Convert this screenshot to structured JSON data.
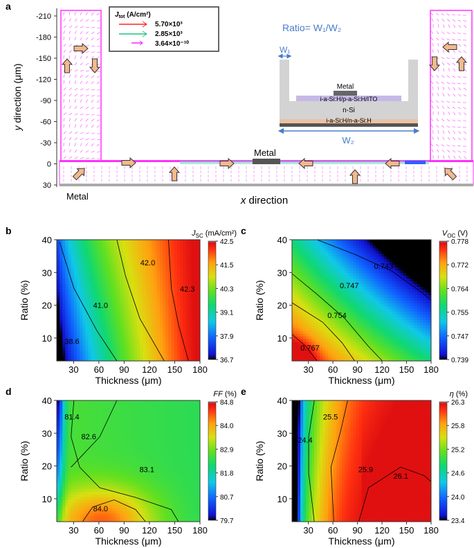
{
  "panel_a": {
    "letter": "a",
    "ylabel_italic": "y",
    "ylabel_rest": " direction (μm)",
    "xlabel_italic": "x",
    "xlabel_rest": " direction",
    "yticks": [
      "-210",
      "-180",
      "-150",
      "-120",
      "-90",
      "-60",
      "-30",
      "0",
      "30"
    ],
    "metal_left_label": "Metal",
    "metal_center_label": "Metal",
    "legend": {
      "title_main": "J",
      "title_sub": "tot",
      "title_unit": " (A/cm²)",
      "entries": [
        {
          "value": "5.70×10³",
          "color": "#ff2020"
        },
        {
          "value": "2.85×10³",
          "color": "#20c080"
        },
        {
          "value": "3.64×10⁻¹⁰",
          "color": "#ff20ff"
        }
      ]
    },
    "inset": {
      "ratio_label": "Ratio= W₁/W₂",
      "w1_label": "W₁",
      "w2_label": "W₂",
      "metal_label": "Metal",
      "layer_top": "i-a-Si:H/p-a-Si:H/ITO",
      "layer_mid": "n-Si",
      "layer_bottom": "i-a-Si:H/n-a-Si:H"
    }
  },
  "chart_data": [
    {
      "type": "heatmap",
      "panel": "b",
      "title": "J_SC (mA/cm²)",
      "colorbar_title_main": "J",
      "colorbar_title_sub": "SC",
      "colorbar_title_unit": " (mA/cm²)",
      "xlabel": "Thickness (μm)",
      "ylabel": "Ratio (%)",
      "xlim": [
        10,
        180
      ],
      "ylim": [
        3,
        40
      ],
      "xticks": [
        "30",
        "60",
        "90",
        "120",
        "150",
        "180"
      ],
      "yticks": [
        "10",
        "20",
        "30",
        "40"
      ],
      "colorbar_ticks": [
        "42.5",
        "41.5",
        "40.3",
        "39.1",
        "37.9",
        "36.7"
      ],
      "vmin": 36.7,
      "vmax": 42.5,
      "contour_labels": [
        {
          "text": "42.0",
          "x": 118,
          "y": 33
        },
        {
          "text": "42.3",
          "x": 165,
          "y": 25
        },
        {
          "text": "41.0",
          "x": 62,
          "y": 20
        },
        {
          "text": "38.6",
          "x": 28,
          "y": 9
        }
      ]
    },
    {
      "type": "heatmap",
      "panel": "c",
      "title": "V_OC (V)",
      "colorbar_title_main": "V",
      "colorbar_title_sub": "OC",
      "colorbar_title_unit": " (V)",
      "xlabel": "Thickness (μm)",
      "ylabel": "Ratio (%)",
      "xlim": [
        10,
        180
      ],
      "ylim": [
        3,
        40
      ],
      "xticks": [
        "30",
        "60",
        "90",
        "120",
        "150",
        "180"
      ],
      "yticks": [
        "10",
        "20",
        "30",
        "40"
      ],
      "colorbar_ticks": [
        "0.778",
        "0.772",
        "0.764",
        "0.755",
        "0.747",
        "0.739"
      ],
      "vmin": 0.739,
      "vmax": 0.778,
      "contour_labels": [
        {
          "text": "0.743",
          "x": 122,
          "y": 32
        },
        {
          "text": "0.747",
          "x": 80,
          "y": 26
        },
        {
          "text": "0.754",
          "x": 65,
          "y": 17
        },
        {
          "text": "0.767",
          "x": 32,
          "y": 7
        }
      ]
    },
    {
      "type": "heatmap",
      "panel": "d",
      "title": "FF (%)",
      "colorbar_title_main": "FF",
      "colorbar_title_sub": "",
      "colorbar_title_unit": " (%)",
      "xlabel": "Thickness (μm)",
      "ylabel": "Ratio (%)",
      "xlim": [
        10,
        180
      ],
      "ylim": [
        3,
        40
      ],
      "xticks": [
        "30",
        "60",
        "90",
        "120",
        "150",
        "180"
      ],
      "yticks": [
        "10",
        "20",
        "30",
        "40"
      ],
      "colorbar_ticks": [
        "84.8",
        "84.0",
        "82.9",
        "81.8",
        "80.7",
        "79.7"
      ],
      "vmin": 79.7,
      "vmax": 84.8,
      "contour_labels": [
        {
          "text": "81.4",
          "x": 28,
          "y": 35
        },
        {
          "text": "82.6",
          "x": 48,
          "y": 29
        },
        {
          "text": "83.1",
          "x": 117,
          "y": 19
        },
        {
          "text": "84.0",
          "x": 62,
          "y": 7
        }
      ]
    },
    {
      "type": "heatmap",
      "panel": "e",
      "title": "η (%)",
      "colorbar_title_main": "η",
      "colorbar_title_sub": "",
      "colorbar_title_unit": " (%)",
      "xlabel": "Thickness (μm)",
      "ylabel": "Ratio (%)",
      "xlim": [
        10,
        180
      ],
      "ylim": [
        3,
        40
      ],
      "xticks": [
        "30",
        "60",
        "90",
        "120",
        "150",
        "180"
      ],
      "yticks": [
        "10",
        "20",
        "30",
        "40"
      ],
      "colorbar_ticks": [
        "26.3",
        "25.8",
        "25.2",
        "24.6",
        "24.0",
        "23.4"
      ],
      "vmin": 23.4,
      "vmax": 26.3,
      "contour_labels": [
        {
          "text": "25.5",
          "x": 57,
          "y": 35
        },
        {
          "text": "24.4",
          "x": 26,
          "y": 28
        },
        {
          "text": "25.9",
          "x": 100,
          "y": 19
        },
        {
          "text": "26.1",
          "x": 143,
          "y": 17
        }
      ]
    }
  ]
}
